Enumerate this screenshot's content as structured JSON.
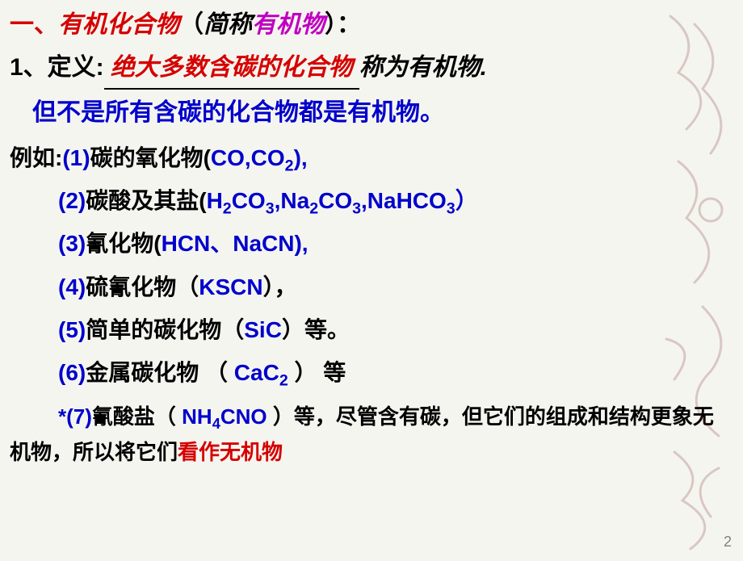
{
  "colors": {
    "black": "#000000",
    "red": "#d50000",
    "blue": "#0000cc",
    "magenta": "#c000c0",
    "gray": "#808080",
    "bg": "#f5f5f0"
  },
  "title": {
    "marker": "一、",
    "main": "有机化合物",
    "paren_open": "（",
    "sub1": "简称",
    "sub2": "有机物",
    "paren_close": "）："
  },
  "def": {
    "marker": "1、定义:",
    "fill": "绝大多数含碳的化合物",
    "tail": "称为有机物."
  },
  "note": "但不是所有含碳的化合物都是有机物。",
  "examples": {
    "head_prefix": "例如:",
    "items": [
      {
        "num": "(1)",
        "label": "碳的氧化物(",
        "formula_html": "CO,CO<sub>2</sub>",
        "close": "),"
      },
      {
        "num": "(2)",
        "label": "碳酸及其盐(",
        "formula_html": "H<sub>2</sub>CO<sub>3</sub>,Na<sub>2</sub>CO<sub>3</sub>,NaHCO<sub>3</sub>",
        "close": "）"
      },
      {
        "num": "(3)",
        "label": "氰化物(",
        "formula_html": "HCN、NaCN",
        "close": "),"
      },
      {
        "num": "(4)",
        "label": "硫氰化物（",
        "formula_html": "KSCN",
        "close": "），"
      },
      {
        "num": "(5)",
        "label": "简单的碳化物（",
        "formula_html": "SiC",
        "close": "）等。"
      },
      {
        "num": "(6)",
        "label": "金属碳化物 （ ",
        "formula_html": "CaC<sub>2</sub>",
        "close": " ） 等"
      },
      {
        "num": "*(7)",
        "label": "氰酸盐（ ",
        "formula_html": "NH<sub>4</sub>CNO",
        "close": " ）等"
      }
    ]
  },
  "tail": {
    "p1": "，尽管含有碳，但它们的组成和结构更象无机物，所以将它们",
    "p2": "看作无机物"
  },
  "page": "2"
}
